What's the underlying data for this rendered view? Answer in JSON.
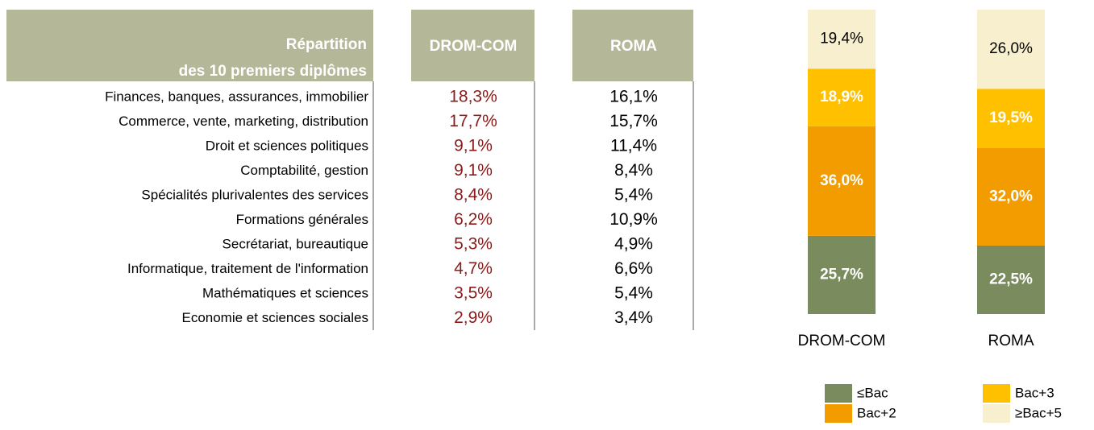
{
  "table": {
    "header_lines": [
      "Répartition",
      "des 10 premiers diplômes"
    ],
    "columns": [
      "DROM-COM",
      "ROMA"
    ],
    "rows": [
      [
        "Finances, banques, assurances, immobilier",
        "18,3%",
        "16,1%"
      ],
      [
        "Commerce, vente, marketing, distribution",
        "17,7%",
        "15,7%"
      ],
      [
        "Droit et sciences politiques",
        "9,1%",
        "11,4%"
      ],
      [
        "Comptabilité, gestion",
        "9,1%",
        "8,4%"
      ],
      [
        "Spécialités plurivalentes des services",
        "8,4%",
        "5,4%"
      ],
      [
        "Formations générales",
        "6,2%",
        "10,9%"
      ],
      [
        "Secrétariat, bureautique",
        "5,3%",
        "4,9%"
      ],
      [
        "Informatique, traitement de l'information",
        "4,7%",
        "6,6%"
      ],
      [
        "Mathématiques et sciences",
        "3,5%",
        "5,4%"
      ],
      [
        "Economie et sciences sociales",
        "2,9%",
        "3,4%"
      ]
    ]
  },
  "chart_data": {
    "type": "stacked_bar",
    "categories": [
      "DROM-COM",
      "ROMA"
    ],
    "ylim": [
      0,
      100
    ],
    "series": [
      {
        "name": "≤Bac",
        "color": "#7a8c5e",
        "values": [
          25.7,
          22.5
        ],
        "value_labels": [
          "25,7%",
          "22,5%"
        ]
      },
      {
        "name": "Bac+2",
        "color": "#f39c00",
        "values": [
          36.0,
          32.0
        ],
        "value_labels": [
          "36,0%",
          "32,0%"
        ]
      },
      {
        "name": "Bac+3",
        "color": "#ffc000",
        "values": [
          18.9,
          19.5
        ],
        "value_labels": [
          "18,9%",
          "19,5%"
        ]
      },
      {
        "name": "≥Bac+5",
        "color": "#f8efcf",
        "values": [
          19.4,
          26.0
        ],
        "value_labels": [
          "19,4%",
          "26,0%"
        ]
      }
    ]
  }
}
